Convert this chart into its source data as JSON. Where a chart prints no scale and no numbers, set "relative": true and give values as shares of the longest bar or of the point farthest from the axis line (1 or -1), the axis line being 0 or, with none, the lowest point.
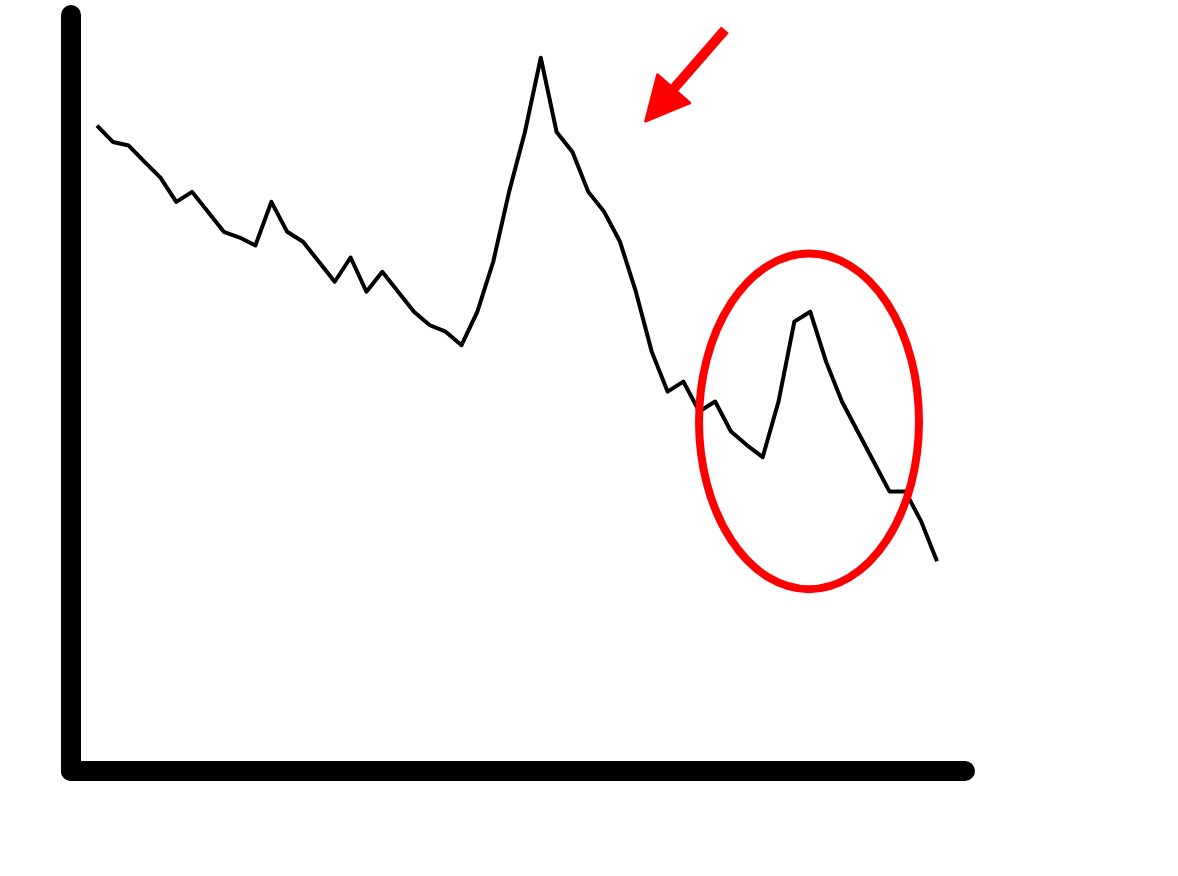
{
  "chart_data": {
    "type": "line",
    "relative": true,
    "categories": [
      null,
      null,
      null,
      null,
      null,
      null,
      null,
      null,
      null,
      null,
      null,
      null,
      null,
      null,
      null,
      null,
      null,
      null,
      null,
      null,
      null,
      null,
      null,
      null,
      null,
      null,
      null,
      null,
      null,
      null,
      null,
      null,
      null,
      null,
      null,
      null,
      null,
      null,
      null,
      null,
      null,
      null,
      null,
      null,
      null,
      null,
      null,
      null,
      null,
      null,
      null,
      null,
      null,
      null
    ],
    "series": [
      {
        "color": "#000000",
        "values": [
          0.905,
          0.882,
          0.877,
          0.854,
          0.832,
          0.798,
          0.812,
          0.784,
          0.756,
          0.748,
          0.737,
          0.798,
          0.756,
          0.742,
          0.714,
          0.686,
          0.72,
          0.672,
          0.7,
          0.672,
          0.644,
          0.625,
          0.616,
          0.597,
          0.644,
          0.714,
          0.812,
          0.896,
          1,
          0.896,
          0.868,
          0.812,
          0.784,
          0.742,
          0.672,
          0.588,
          0.532,
          0.546,
          0.504,
          0.518,
          0.476,
          0.457,
          0.44,
          0.518,
          0.63,
          0.644,
          0.574,
          0.518,
          0.476,
          0.434,
          0.392,
          0.392,
          0.35,
          0.294
        ]
      }
    ]
  }
}
